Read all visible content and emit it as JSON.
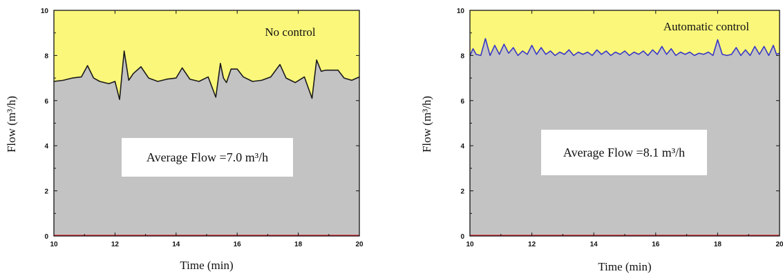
{
  "chart_data": [
    {
      "type": "area",
      "title": "",
      "xlabel": "Time (min)",
      "ylabel": "Flow (m³/h)",
      "xlim": [
        10,
        20
      ],
      "ylim": [
        0,
        10
      ],
      "xticks": [
        "10",
        "12",
        "14",
        "16",
        "18",
        "20"
      ],
      "yticks": [
        "0",
        "2",
        "4",
        "6",
        "8",
        "10"
      ],
      "grid": false,
      "colors": {
        "upper_fill": "#fbf77a",
        "lower_fill": "#c3c3c3",
        "line": "#1a1a1a",
        "baseline": "#e8303a"
      },
      "annotations": {
        "legend_text": "No control",
        "average_text": "Average Flow =7.0 m³/h"
      },
      "series": [
        {
          "x": [
            10.0,
            10.3,
            10.6,
            10.9,
            11.1,
            11.3,
            11.5,
            11.8,
            12.0,
            12.15,
            12.3,
            12.45,
            12.6,
            12.85,
            13.1,
            13.4,
            13.7,
            14.0,
            14.2,
            14.45,
            14.75,
            15.05,
            15.3,
            15.45,
            15.55,
            15.65,
            15.8,
            16.0,
            16.2,
            16.5,
            16.8,
            17.1,
            17.4,
            17.6,
            17.9,
            18.2,
            18.45,
            18.6,
            18.75,
            18.9,
            19.1,
            19.3,
            19.5,
            19.75,
            20.0
          ],
          "y": [
            6.85,
            6.9,
            7.0,
            7.05,
            7.55,
            7.0,
            6.85,
            6.75,
            6.85,
            6.05,
            8.2,
            6.9,
            7.2,
            7.5,
            7.0,
            6.85,
            6.95,
            7.0,
            7.45,
            6.95,
            6.85,
            7.05,
            6.15,
            7.65,
            7.0,
            6.8,
            7.4,
            7.4,
            7.05,
            6.85,
            6.9,
            7.05,
            7.6,
            7.0,
            6.8,
            7.05,
            6.1,
            7.8,
            7.3,
            7.35,
            7.35,
            7.35,
            7.0,
            6.9,
            7.05
          ]
        }
      ]
    },
    {
      "type": "area",
      "title": "",
      "xlabel": "Time (min)",
      "ylabel": "Flow (m³/h)",
      "xlim": [
        10,
        20
      ],
      "ylim": [
        0,
        10
      ],
      "xticks": [
        "10",
        "12",
        "14",
        "16",
        "18",
        "20"
      ],
      "yticks": [
        "0",
        "2",
        "4",
        "6",
        "8",
        "10"
      ],
      "grid": false,
      "colors": {
        "upper_fill": "#fbf77a",
        "lower_fill": "#c3c3c3",
        "line": "#3636c8",
        "baseline": "#e8303a"
      },
      "annotations": {
        "legend_text": "Automatic control",
        "average_text": "Average Flow =8.1 m³/h"
      },
      "series": [
        {
          "x": [
            10.0,
            10.1,
            10.2,
            10.35,
            10.5,
            10.65,
            10.8,
            10.95,
            11.1,
            11.25,
            11.4,
            11.55,
            11.7,
            11.85,
            12.0,
            12.15,
            12.3,
            12.45,
            12.6,
            12.75,
            12.9,
            13.05,
            13.2,
            13.35,
            13.5,
            13.65,
            13.8,
            13.95,
            14.1,
            14.25,
            14.4,
            14.55,
            14.7,
            14.85,
            15.0,
            15.15,
            15.3,
            15.45,
            15.6,
            15.75,
            15.9,
            16.05,
            16.2,
            16.35,
            16.5,
            16.65,
            16.8,
            16.95,
            17.1,
            17.25,
            17.4,
            17.55,
            17.7,
            17.85,
            18.0,
            18.15,
            18.3,
            18.45,
            18.6,
            18.75,
            18.9,
            19.05,
            19.2,
            19.35,
            19.5,
            19.65,
            19.8,
            19.9,
            20.0
          ],
          "y": [
            8.0,
            8.3,
            8.05,
            8.0,
            8.75,
            8.0,
            8.45,
            8.05,
            8.5,
            8.1,
            8.35,
            8.0,
            8.2,
            8.05,
            8.45,
            8.05,
            8.35,
            8.05,
            8.2,
            8.0,
            8.15,
            8.05,
            8.25,
            8.0,
            8.15,
            8.05,
            8.15,
            8.0,
            8.25,
            8.05,
            8.2,
            8.0,
            8.15,
            8.05,
            8.2,
            8.0,
            8.15,
            8.05,
            8.2,
            8.0,
            8.25,
            8.05,
            8.4,
            8.05,
            8.3,
            8.0,
            8.15,
            8.05,
            8.15,
            8.0,
            8.1,
            8.05,
            8.15,
            8.0,
            8.7,
            8.05,
            8.0,
            8.05,
            8.35,
            8.0,
            8.25,
            8.0,
            8.4,
            8.05,
            8.4,
            8.0,
            8.45,
            8.05,
            8.1
          ]
        }
      ]
    }
  ]
}
